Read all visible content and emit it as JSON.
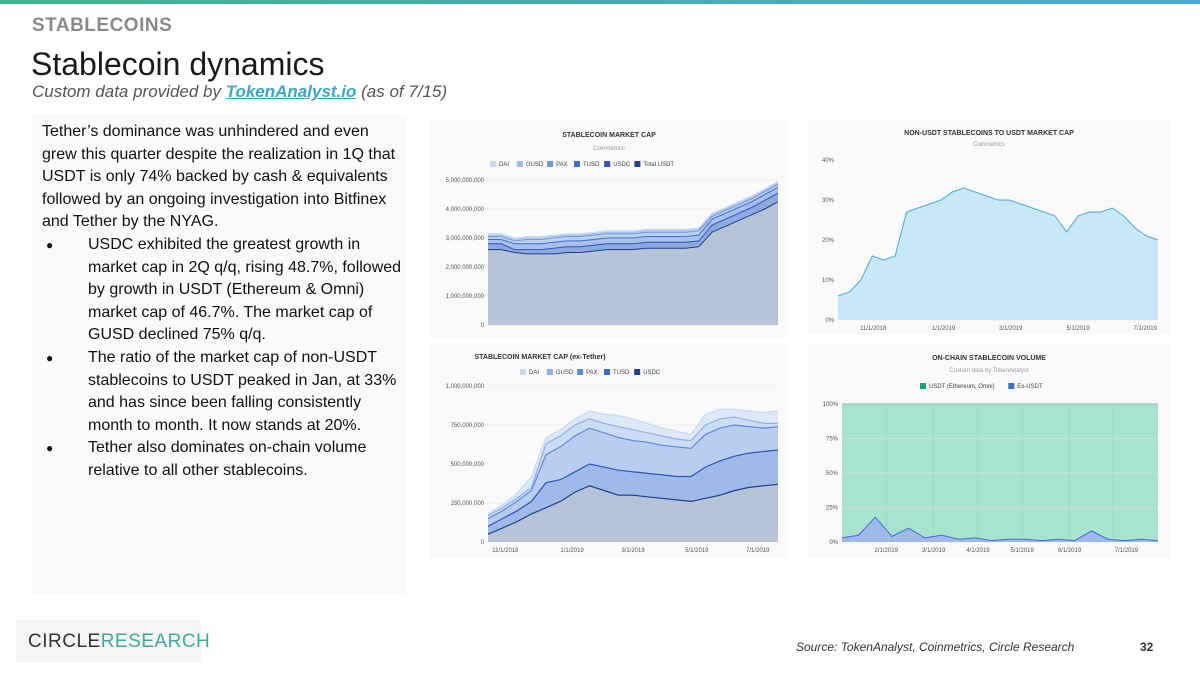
{
  "header": {
    "section_label": "STABLECOINS",
    "title": "Stablecoin dynamics",
    "subtitle_before": "Custom data provided by ",
    "subtitle_link": "TokenAnalyst.io",
    "subtitle_after": " (as of 7/15)"
  },
  "body": {
    "intro": "Tether’s dominance was unhindered and even grew this quarter despite the realization in 1Q that USDT is only 74% backed by cash & equivalents followed by an ongoing investigation into Bitfinex and Tether by the NYAG.",
    "bullets": [
      "USDC exhibited the greatest growth in market cap in 2Q q/q, rising 48.7%, followed by growth in USDT (Ethereum & Omni) market cap of 46.7%. The market cap of GUSD declined 75% q/q.",
      "The ratio of the market cap of non-USDT stablecoins to USDT peaked in Jan, at 33% and has since been falling consistently month to month. It now stands at 20%.",
      "Tether also dominates on-chain volume relative to all other stablecoins."
    ]
  },
  "colors": {
    "accent": "#3aa7c9",
    "area_light": "#cfe0f5",
    "area_mid": "#8fb0e8",
    "area_dark": "#3b6fd6",
    "total_fill": "#b7c3d6",
    "ratio_fill": "#c9e8f6",
    "ratio_line": "#4aa8d8",
    "volume_fill": "#a8e3cd",
    "volume_line": "#3d6fd8"
  },
  "chart_data": [
    {
      "type": "area",
      "title": "STABLECOIN MARKET CAP",
      "subtitle": "Coinmetrics",
      "legend": [
        "DAI",
        "GUSD",
        "PAX",
        "TUSD",
        "USDC",
        "Total USDT"
      ],
      "y_ticks": [
        "5,000,000,000",
        "4,000,000,000",
        "3,000,000,000",
        "2,000,000,000",
        "1,000,000,000",
        "0"
      ],
      "ylim": [
        0,
        5000000000
      ],
      "x_ticks": [],
      "series": [
        {
          "name": "Total USDT",
          "values": [
            2.6,
            2.6,
            2.5,
            2.45,
            2.45,
            2.45,
            2.5,
            2.5,
            2.55,
            2.6,
            2.6,
            2.6,
            2.65,
            2.65,
            2.65,
            2.65,
            2.7,
            3.2,
            3.4,
            3.6,
            3.8,
            4.0,
            4.25
          ]
        },
        {
          "name": "USDC",
          "values": [
            2.8,
            2.8,
            2.6,
            2.6,
            2.6,
            2.65,
            2.7,
            2.7,
            2.75,
            2.8,
            2.8,
            2.8,
            2.85,
            2.85,
            2.85,
            2.85,
            2.9,
            3.45,
            3.65,
            3.85,
            4.05,
            4.3,
            4.55
          ]
        },
        {
          "name": "TUSD",
          "values": [
            2.95,
            2.95,
            2.8,
            2.8,
            2.8,
            2.85,
            2.9,
            2.9,
            2.95,
            3.0,
            3.0,
            3.0,
            3.05,
            3.05,
            3.05,
            3.05,
            3.1,
            3.65,
            3.85,
            4.05,
            4.25,
            4.5,
            4.75
          ]
        },
        {
          "name": "PAX",
          "values": [
            3.05,
            3.05,
            2.9,
            2.95,
            2.95,
            3.0,
            3.05,
            3.05,
            3.1,
            3.15,
            3.15,
            3.15,
            3.2,
            3.2,
            3.2,
            3.2,
            3.25,
            3.75,
            3.95,
            4.15,
            4.35,
            4.6,
            4.85
          ]
        },
        {
          "name": "GUSD",
          "values": [
            3.1,
            3.1,
            2.95,
            3.0,
            3.0,
            3.05,
            3.1,
            3.1,
            3.15,
            3.2,
            3.2,
            3.2,
            3.25,
            3.25,
            3.25,
            3.25,
            3.3,
            3.8,
            4.0,
            4.2,
            4.4,
            4.65,
            4.9
          ]
        },
        {
          "name": "DAI",
          "values": [
            3.15,
            3.15,
            3.0,
            3.05,
            3.05,
            3.1,
            3.15,
            3.15,
            3.2,
            3.25,
            3.25,
            3.25,
            3.3,
            3.3,
            3.3,
            3.3,
            3.35,
            3.85,
            4.05,
            4.25,
            4.45,
            4.7,
            4.95
          ]
        }
      ],
      "units": "billions USD"
    },
    {
      "type": "area",
      "title": "NON-USDT STABLECOINS TO USDT MARKET CAP",
      "subtitle": "Coinmetrics",
      "y_ticks": [
        "40%",
        "30%",
        "20%",
        "10%",
        "0%"
      ],
      "ylim": [
        0,
        40
      ],
      "x_ticks": [
        "11/1/2018",
        "1/1/2019",
        "3/1/2019",
        "5/1/2019",
        "7/1/2019"
      ],
      "series": [
        {
          "name": "Non-USDT / USDT ratio",
          "values": [
            6,
            7,
            10,
            16,
            15,
            16,
            27,
            28,
            29,
            30,
            32,
            33,
            32,
            31,
            30,
            30,
            29,
            28,
            27,
            26,
            22,
            26,
            27,
            27,
            28,
            26,
            23,
            21,
            20
          ]
        }
      ]
    },
    {
      "type": "area",
      "title": "STABLECOIN MARKET CAP (ex-Tether)",
      "legend": [
        "DAI",
        "GUSD",
        "PAX",
        "TUSD",
        "USDC"
      ],
      "y_ticks": [
        "1,000,000,000",
        "750,000,000",
        "500,000,000",
        "250,000,000",
        "0"
      ],
      "ylim": [
        0,
        1000000000
      ],
      "x_ticks": [
        "11/1/2018",
        "1/1/2019",
        "3/1/2019",
        "5/1/2019",
        "7/1/2019"
      ],
      "series": [
        {
          "name": "USDC",
          "values": [
            50,
            90,
            130,
            180,
            220,
            260,
            320,
            360,
            330,
            300,
            300,
            290,
            280,
            270,
            260,
            280,
            300,
            330,
            350,
            360,
            370
          ]
        },
        {
          "name": "TUSD",
          "values": [
            100,
            150,
            200,
            260,
            380,
            400,
            450,
            500,
            480,
            460,
            450,
            440,
            430,
            420,
            420,
            480,
            520,
            550,
            570,
            580,
            590
          ]
        },
        {
          "name": "PAX",
          "values": [
            150,
            200,
            260,
            330,
            560,
            610,
            680,
            730,
            700,
            670,
            650,
            640,
            620,
            610,
            600,
            690,
            730,
            750,
            740,
            730,
            740
          ]
        },
        {
          "name": "GUSD",
          "values": [
            170,
            220,
            280,
            350,
            630,
            680,
            750,
            790,
            760,
            740,
            720,
            700,
            680,
            660,
            650,
            750,
            790,
            800,
            780,
            760,
            760
          ]
        },
        {
          "name": "DAI",
          "values": [
            180,
            240,
            310,
            420,
            670,
            720,
            790,
            840,
            820,
            810,
            790,
            760,
            730,
            710,
            690,
            820,
            850,
            850,
            840,
            830,
            840
          ]
        }
      ]
    },
    {
      "type": "area",
      "title": "ON-CHAIN STABLECOIN VOLUME",
      "subtitle": "Custom data by TokenAnalyst",
      "legend": [
        "USDT (Ethereum, Omni)",
        "Ex-USDT"
      ],
      "y_ticks": [
        "100%",
        "75%",
        "50%",
        "25%",
        "0%"
      ],
      "ylim": [
        0,
        100
      ],
      "x_ticks": [
        "2/1/2019",
        "3/1/2019",
        "4/1/2019",
        "5/1/2019",
        "6/1/2019",
        "7/1/2019"
      ],
      "series": [
        {
          "name": "USDT (Ethereum, Omni)",
          "values": [
            100,
            100,
            100,
            100,
            100,
            100,
            100,
            100,
            100,
            100,
            100,
            100,
            100,
            100,
            100,
            100,
            100,
            100,
            100,
            100
          ]
        },
        {
          "name": "Ex-USDT",
          "values": [
            3,
            5,
            18,
            4,
            10,
            3,
            5,
            2,
            3,
            1,
            2,
            2,
            1,
            2,
            1,
            8,
            2,
            1,
            2,
            1
          ]
        }
      ]
    }
  ],
  "footer": {
    "logo_part1": "CIRCLE",
    "logo_part2": "RESEARCH",
    "source": "Source: TokenAnalyst, Coinmetrics, Circle Research",
    "page_number": "32"
  }
}
